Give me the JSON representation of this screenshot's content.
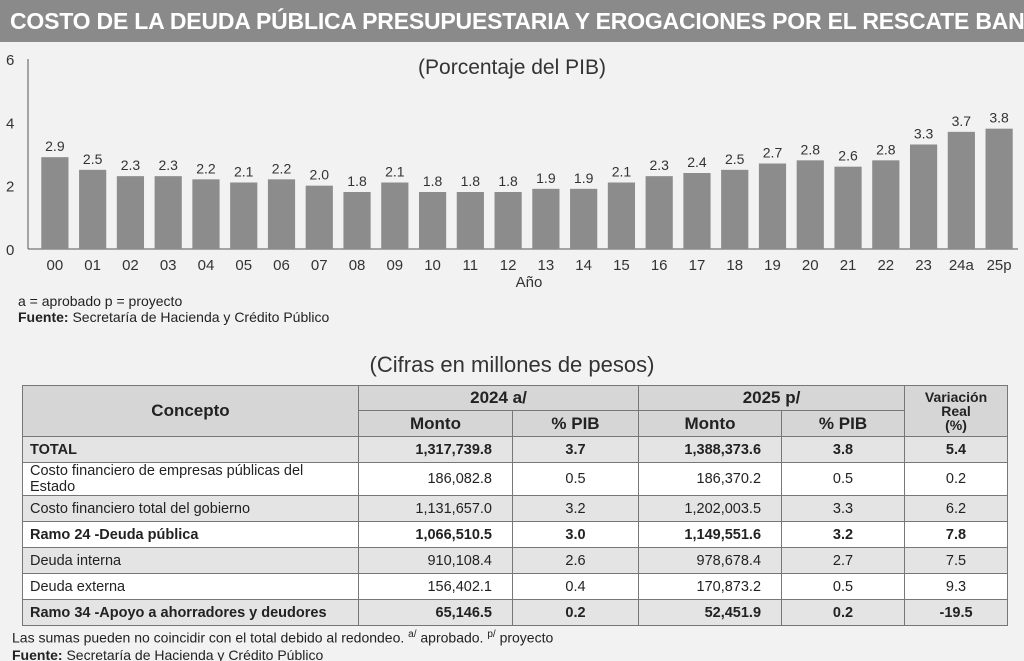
{
  "title": "COSTO DE LA DEUDA PÚBLICA PRESUPUESTARIA Y EROGACIONES POR EL RESCATE BANCARIO",
  "chart_data": {
    "type": "bar",
    "subtitle": "(Porcentaje del PIB)",
    "xlabel": "Año",
    "ylabel": "",
    "ylim": [
      0,
      6
    ],
    "yticks": [
      0,
      2,
      4,
      6
    ],
    "categories": [
      "00",
      "01",
      "02",
      "03",
      "04",
      "05",
      "06",
      "07",
      "08",
      "09",
      "10",
      "11",
      "12",
      "13",
      "14",
      "15",
      "16",
      "17",
      "18",
      "19",
      "20",
      "21",
      "22",
      "23",
      "24a",
      "25p"
    ],
    "values": [
      2.9,
      2.5,
      2.3,
      2.3,
      2.2,
      2.1,
      2.2,
      2.0,
      1.8,
      2.1,
      1.8,
      1.8,
      1.8,
      1.9,
      1.9,
      2.1,
      2.3,
      2.4,
      2.5,
      2.7,
      2.8,
      2.6,
      2.8,
      3.3,
      3.7,
      3.8
    ],
    "value_labels": [
      "2.9",
      "2.5",
      "2.3",
      "2.3",
      "2.2",
      "2.1",
      "2.2",
      "2.0",
      "1.8",
      "2.1",
      "1.8",
      "1.8",
      "1.8",
      "1.9",
      "1.9",
      "2.1",
      "2.3",
      "2.4",
      "2.5",
      "2.7",
      "2.8",
      "2.6",
      "2.8",
      "3.3",
      "3.7",
      "3.8"
    ],
    "bar_color": "#8c8c8c",
    "grid": false
  },
  "notes": {
    "legend": "a = aprobado  p = proyecto",
    "source_label": "Fuente:",
    "source_text": " Secretaría de Hacienda y Crédito Público"
  },
  "table": {
    "subtitle": "(Cifras en millones de pesos)",
    "header": {
      "concept": "Concepto",
      "year1": "2024 a/",
      "year2": "2025 p/",
      "monto": "Monto",
      "pib": "% PIB",
      "var_line1": "Variación",
      "var_line2": "Real",
      "var_line3": "(%)"
    },
    "rows": [
      {
        "concept": "TOTAL",
        "m2024": "1,317,739.8",
        "p2024": "3.7",
        "m2025": "1,388,373.6",
        "p2025": "3.8",
        "var": "5.4"
      },
      {
        "concept": "Costo financiero de empresas públicas del Estado",
        "m2024": "186,082.8",
        "p2024": "0.5",
        "m2025": "186,370.2",
        "p2025": "0.5",
        "var": "0.2"
      },
      {
        "concept": "Costo financiero total del gobierno",
        "m2024": "1,131,657.0",
        "p2024": "3.2",
        "m2025": "1,202,003.5",
        "p2025": "3.3",
        "var": "6.2"
      },
      {
        "concept": "Ramo 24 -Deuda pública",
        "m2024": "1,066,510.5",
        "p2024": "3.0",
        "m2025": "1,149,551.6",
        "p2025": "3.2",
        "var": "7.8"
      },
      {
        "concept": "Deuda interna",
        "m2024": "910,108.4",
        "p2024": "2.6",
        "m2025": "978,678.4",
        "p2025": "2.7",
        "var": "7.5"
      },
      {
        "concept": "Deuda externa",
        "m2024": "156,402.1",
        "p2024": "0.4",
        "m2025": "170,873.2",
        "p2025": "0.5",
        "var": "9.3"
      },
      {
        "concept": "Ramo 34 -Apoyo a ahorradores y deudores",
        "m2024": "65,146.5",
        "p2024": "0.2",
        "m2025": "52,451.9",
        "p2025": "0.2",
        "var": "-19.5"
      }
    ]
  },
  "footer": {
    "text1": "Las sumas pueden no coincidir con el total debido al redondeo. ",
    "sup1": "a/",
    "text2": " aprobado. ",
    "sup2": "p/",
    "text3": " proyecto",
    "source_label": "Fuente:",
    "source_text": " Secretaría de Hacienda y Crédito Público"
  }
}
